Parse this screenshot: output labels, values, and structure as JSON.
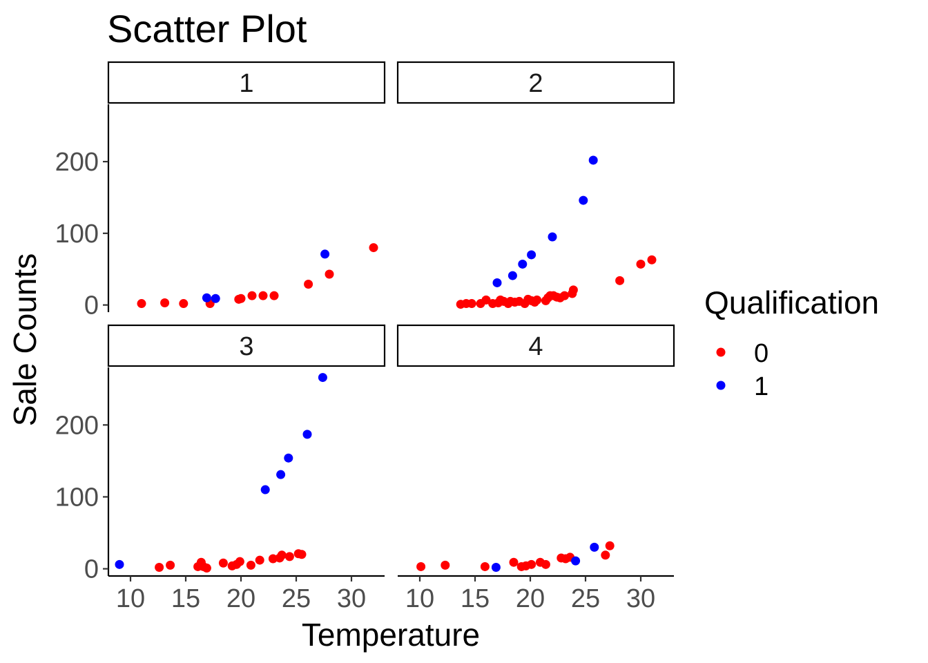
{
  "chart_data": {
    "type": "scatter",
    "title": "Scatter Plot",
    "xlabel": "Temperature",
    "ylabel": "Sale Counts",
    "xlim": [
      8,
      33
    ],
    "ylim": [
      -10,
      280
    ],
    "xticks": [
      10,
      15,
      20,
      25,
      30
    ],
    "yticks": [
      0,
      100,
      200
    ],
    "grid": false,
    "legend": {
      "title": "Qualification",
      "placement": "right",
      "entries": [
        {
          "label": "0",
          "color": "#ff0000"
        },
        {
          "label": "1",
          "color": "#0000ff"
        }
      ]
    },
    "panels": [
      {
        "label": "1",
        "series": [
          {
            "qualification": "0",
            "color": "#ff0000",
            "points": [
              [
                11.0,
                2
              ],
              [
                13.1,
                3
              ],
              [
                14.8,
                2
              ],
              [
                17.2,
                2
              ],
              [
                19.8,
                8
              ],
              [
                20.0,
                9
              ],
              [
                21.0,
                13
              ],
              [
                22.0,
                13
              ],
              [
                23.0,
                13
              ],
              [
                26.1,
                29
              ],
              [
                28.0,
                43
              ],
              [
                32.0,
                80
              ]
            ]
          },
          {
            "qualification": "1",
            "color": "#0000ff",
            "points": [
              [
                16.9,
                10
              ],
              [
                17.7,
                9
              ],
              [
                27.6,
                71
              ]
            ]
          }
        ]
      },
      {
        "label": "2",
        "series": [
          {
            "qualification": "0",
            "color": "#ff0000",
            "points": [
              [
                13.7,
                1
              ],
              [
                14.2,
                2
              ],
              [
                14.7,
                2
              ],
              [
                15.5,
                2
              ],
              [
                16.0,
                7
              ],
              [
                16.6,
                2
              ],
              [
                17.1,
                3
              ],
              [
                17.3,
                7
              ],
              [
                17.6,
                5
              ],
              [
                18.0,
                2
              ],
              [
                18.2,
                5
              ],
              [
                18.6,
                4
              ],
              [
                19.0,
                5
              ],
              [
                19.5,
                2
              ],
              [
                19.8,
                8
              ],
              [
                20.1,
                6
              ],
              [
                20.4,
                4
              ],
              [
                20.6,
                7
              ],
              [
                21.4,
                6
              ],
              [
                21.6,
                10
              ],
              [
                21.8,
                13
              ],
              [
                22.1,
                13
              ],
              [
                22.4,
                11
              ],
              [
                22.7,
                10
              ],
              [
                23.1,
                13
              ],
              [
                23.8,
                16
              ],
              [
                23.9,
                21
              ],
              [
                28.1,
                34
              ],
              [
                30.0,
                57
              ],
              [
                31.0,
                63
              ]
            ]
          },
          {
            "qualification": "1",
            "color": "#0000ff",
            "points": [
              [
                17.0,
                31
              ],
              [
                18.4,
                41
              ],
              [
                19.3,
                57
              ],
              [
                20.1,
                70
              ],
              [
                22.0,
                95
              ],
              [
                24.8,
                146
              ],
              [
                25.7,
                202
              ]
            ]
          }
        ]
      },
      {
        "label": "3",
        "series": [
          {
            "qualification": "0",
            "color": "#ff0000",
            "points": [
              [
                12.6,
                2
              ],
              [
                13.6,
                5
              ],
              [
                16.1,
                3
              ],
              [
                16.4,
                9
              ],
              [
                16.6,
                3
              ],
              [
                16.9,
                1
              ],
              [
                18.4,
                8
              ],
              [
                19.2,
                4
              ],
              [
                19.6,
                6
              ],
              [
                19.9,
                10
              ],
              [
                20.9,
                5
              ],
              [
                21.7,
                12
              ],
              [
                22.9,
                14
              ],
              [
                23.5,
                15
              ],
              [
                23.7,
                19
              ],
              [
                24.4,
                17
              ],
              [
                25.2,
                21
              ],
              [
                25.5,
                20
              ]
            ]
          },
          {
            "qualification": "1",
            "color": "#0000ff",
            "points": [
              [
                9.0,
                6
              ],
              [
                22.2,
                110
              ],
              [
                23.6,
                131
              ],
              [
                24.3,
                154
              ],
              [
                26.0,
                187
              ],
              [
                27.4,
                266
              ]
            ]
          }
        ]
      },
      {
        "label": "4",
        "series": [
          {
            "qualification": "0",
            "color": "#ff0000",
            "points": [
              [
                10.1,
                3
              ],
              [
                12.3,
                5
              ],
              [
                15.9,
                3
              ],
              [
                18.5,
                9
              ],
              [
                19.2,
                3
              ],
              [
                19.6,
                4
              ],
              [
                20.1,
                6
              ],
              [
                20.9,
                9
              ],
              [
                21.4,
                6
              ],
              [
                22.8,
                15
              ],
              [
                23.2,
                14
              ],
              [
                23.6,
                16
              ],
              [
                26.8,
                19
              ],
              [
                27.2,
                32
              ]
            ]
          },
          {
            "qualification": "1",
            "color": "#0000ff",
            "points": [
              [
                16.9,
                2
              ],
              [
                24.1,
                11
              ],
              [
                25.8,
                30
              ]
            ]
          }
        ]
      }
    ]
  }
}
